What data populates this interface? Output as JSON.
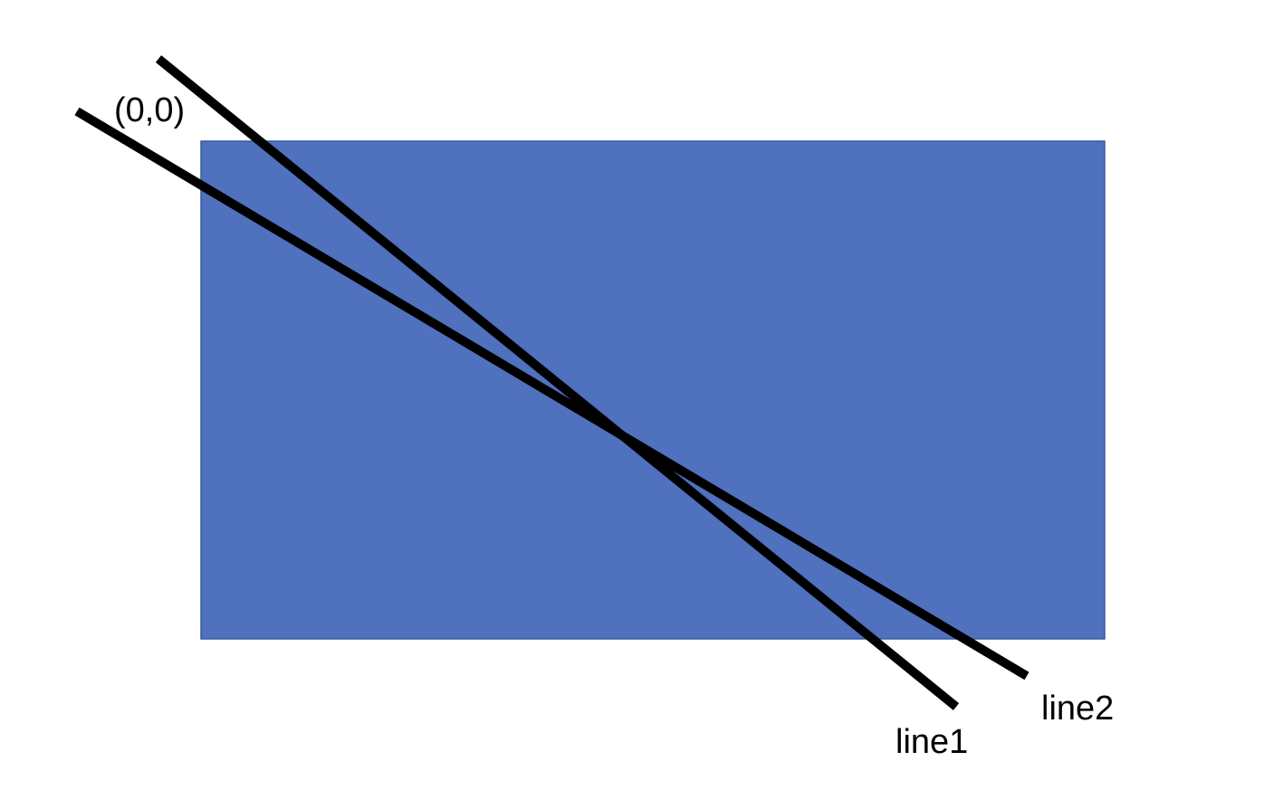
{
  "labels": {
    "origin": "(0,0)",
    "line1": "line1",
    "line2": "line2"
  },
  "colors": {
    "background": "#ffffff",
    "rect_fill": "#4f71be",
    "rect_stroke": "#3a5a9e",
    "line": "#000000"
  }
}
